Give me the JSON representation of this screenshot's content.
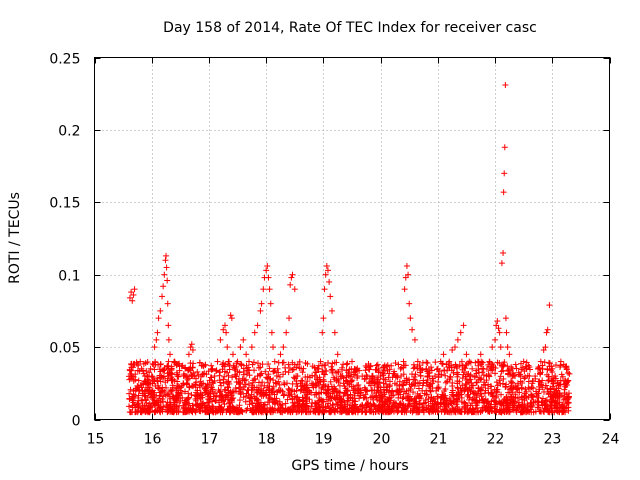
{
  "chart_data": {
    "type": "scatter",
    "title": "Day 158 of 2014, Rate Of TEC Index for receiver casc",
    "xlabel": "GPS time / hours",
    "ylabel": "ROTI / TECUs",
    "xlim": [
      15,
      24
    ],
    "ylim": [
      0,
      0.25
    ],
    "xticks": [
      15,
      16,
      17,
      18,
      19,
      20,
      21,
      22,
      23,
      24
    ],
    "yticks": [
      0,
      0.05,
      0.1,
      0.15,
      0.2,
      0.25
    ],
    "ytick_labels": [
      "0",
      "0.05",
      "0.1",
      "0.15",
      "0.2",
      "0.25"
    ],
    "grid": true,
    "marker": "+",
    "color": "#ff0000",
    "series": [
      {
        "name": "ROTI",
        "x": [
          15.62,
          15.64,
          15.66,
          15.68,
          15.7,
          15.65,
          15.67,
          15.72,
          15.8,
          15.82,
          15.85,
          15.88,
          15.9,
          15.93,
          15.95,
          15.98,
          16.0,
          16.02,
          16.05,
          16.08,
          16.1,
          16.12,
          16.15,
          16.18,
          16.2,
          16.22,
          16.24,
          16.25,
          16.26,
          16.27,
          16.28,
          16.29,
          16.3,
          16.32,
          16.35,
          16.4,
          16.45,
          16.5,
          16.55,
          16.6,
          16.65,
          16.68,
          16.7,
          16.72,
          16.75,
          16.8,
          16.85,
          16.9,
          16.95,
          17.0,
          17.05,
          17.1,
          17.15,
          17.2,
          17.25,
          17.28,
          17.3,
          17.32,
          17.35,
          17.38,
          17.4,
          17.42,
          17.45,
          17.48,
          17.5,
          17.55,
          17.6,
          17.65,
          17.7,
          17.75,
          17.8,
          17.85,
          17.9,
          17.92,
          17.95,
          17.97,
          18.0,
          18.02,
          18.04,
          18.06,
          18.08,
          18.1,
          18.12,
          18.15,
          18.2,
          18.25,
          18.3,
          18.35,
          18.4,
          18.42,
          18.44,
          18.46,
          18.5,
          18.55,
          18.6,
          18.65,
          18.7,
          18.75,
          18.8,
          18.85,
          18.9,
          18.95,
          18.98,
          19.0,
          19.02,
          19.04,
          19.06,
          19.08,
          19.1,
          19.12,
          19.15,
          19.2,
          19.25,
          19.3,
          19.35,
          19.4,
          19.45,
          19.5,
          19.55,
          19.6,
          19.65,
          19.7,
          19.75,
          19.8,
          19.85,
          19.9,
          19.95,
          20.0,
          20.05,
          20.1,
          20.15,
          20.2,
          20.25,
          20.3,
          20.35,
          20.4,
          20.42,
          20.44,
          20.46,
          20.48,
          20.5,
          20.52,
          20.55,
          20.6,
          20.65,
          20.7,
          20.75,
          20.8,
          20.85,
          20.9,
          20.95,
          21.0,
          21.05,
          21.1,
          21.15,
          21.2,
          21.25,
          21.3,
          21.35,
          21.4,
          21.45,
          21.5,
          21.55,
          21.6,
          21.65,
          21.7,
          21.75,
          21.8,
          21.85,
          21.9,
          21.95,
          22.0,
          22.02,
          22.04,
          22.06,
          22.08,
          22.1,
          22.12,
          22.14,
          22.15,
          22.16,
          22.17,
          22.18,
          22.19,
          22.2,
          22.22,
          22.25,
          22.3,
          22.35,
          22.4,
          22.45,
          22.5,
          22.55,
          22.6,
          22.65,
          22.7,
          22.75,
          22.8,
          22.85,
          22.88,
          22.9,
          22.92,
          22.95,
          23.0,
          23.05,
          23.1,
          23.15,
          23.2,
          23.25
        ],
        "y": [
          0.084,
          0.088,
          0.082,
          0.086,
          0.09,
          0.03,
          0.015,
          0.02,
          0.04,
          0.035,
          0.025,
          0.03,
          0.02,
          0.015,
          0.025,
          0.035,
          0.03,
          0.02,
          0.05,
          0.055,
          0.06,
          0.07,
          0.075,
          0.085,
          0.092,
          0.1,
          0.11,
          0.113,
          0.105,
          0.096,
          0.08,
          0.065,
          0.055,
          0.045,
          0.035,
          0.04,
          0.03,
          0.02,
          0.025,
          0.03,
          0.045,
          0.05,
          0.052,
          0.048,
          0.03,
          0.02,
          0.015,
          0.025,
          0.02,
          0.018,
          0.022,
          0.03,
          0.04,
          0.055,
          0.062,
          0.065,
          0.06,
          0.05,
          0.04,
          0.072,
          0.07,
          0.045,
          0.035,
          0.03,
          0.04,
          0.05,
          0.055,
          0.045,
          0.04,
          0.05,
          0.06,
          0.065,
          0.075,
          0.08,
          0.09,
          0.098,
          0.103,
          0.106,
          0.098,
          0.09,
          0.08,
          0.06,
          0.05,
          0.04,
          0.035,
          0.045,
          0.05,
          0.06,
          0.07,
          0.093,
          0.098,
          0.1,
          0.09,
          0.03,
          0.025,
          0.02,
          0.015,
          0.02,
          0.025,
          0.03,
          0.035,
          0.04,
          0.06,
          0.07,
          0.09,
          0.1,
          0.106,
          0.103,
          0.095,
          0.085,
          0.075,
          0.06,
          0.045,
          0.03,
          0.025,
          0.02,
          0.03,
          0.04,
          0.035,
          0.03,
          0.02,
          0.015,
          0.02,
          0.025,
          0.03,
          0.025,
          0.02,
          0.03,
          0.025,
          0.02,
          0.015,
          0.02,
          0.025,
          0.03,
          0.035,
          0.04,
          0.09,
          0.098,
          0.106,
          0.1,
          0.08,
          0.07,
          0.062,
          0.055,
          0.04,
          0.03,
          0.025,
          0.035,
          0.03,
          0.025,
          0.03,
          0.035,
          0.04,
          0.045,
          0.038,
          0.04,
          0.048,
          0.05,
          0.055,
          0.06,
          0.065,
          0.045,
          0.04,
          0.035,
          0.03,
          0.04,
          0.045,
          0.035,
          0.03,
          0.04,
          0.05,
          0.055,
          0.065,
          0.068,
          0.063,
          0.06,
          0.05,
          0.108,
          0.115,
          0.157,
          0.17,
          0.188,
          0.231,
          0.07,
          0.06,
          0.05,
          0.045,
          0.035,
          0.03,
          0.025,
          0.03,
          0.04,
          0.035,
          0.03,
          0.025,
          0.03,
          0.035,
          0.04,
          0.048,
          0.05,
          0.06,
          0.062,
          0.079,
          0.035,
          0.03,
          0.025,
          0.04,
          0.038,
          0.035
        ],
        "dense_band": {
          "x_range": [
            15.6,
            23.3
          ],
          "y_range": [
            0.005,
            0.04
          ],
          "description_values_per_hour": 0
        }
      }
    ]
  }
}
